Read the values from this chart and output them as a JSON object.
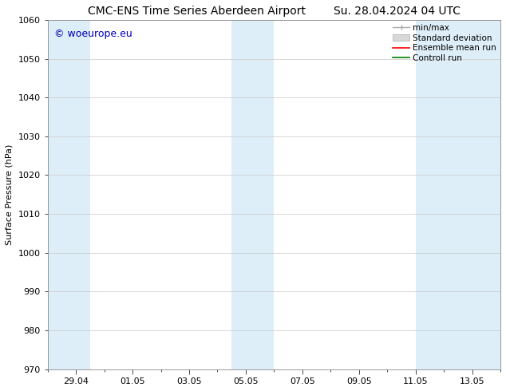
{
  "title_left": "CMC-ENS Time Series Aberdeen Airport",
  "title_right": "Su. 28.04.2024 04 UTC",
  "ylabel": "Surface Pressure (hPa)",
  "watermark": "© woeurope.eu",
  "ylim": [
    970,
    1060
  ],
  "yticks": [
    970,
    980,
    990,
    1000,
    1010,
    1020,
    1030,
    1040,
    1050,
    1060
  ],
  "xtick_labels": [
    "29.04",
    "01.05",
    "03.05",
    "05.05",
    "07.05",
    "09.05",
    "11.05",
    "13.05"
  ],
  "xtick_positions": [
    1,
    3,
    5,
    7,
    9,
    11,
    13,
    15
  ],
  "xmin": 0,
  "xmax": 16,
  "shaded_bands": [
    {
      "xmin": 0,
      "xmax": 1.5,
      "color": "#ddeef8"
    },
    {
      "xmin": 6.5,
      "xmax": 8.0,
      "color": "#ddeef8"
    },
    {
      "xmin": 13.0,
      "xmax": 16,
      "color": "#ddeef8"
    }
  ],
  "minor_xtick_positions": [
    0,
    1,
    2,
    3,
    4,
    5,
    6,
    7,
    8,
    9,
    10,
    11,
    12,
    13,
    14,
    15,
    16
  ],
  "background_color": "#ffffff",
  "grid_color": "#c8c8c8",
  "legend_items": [
    {
      "label": "min/max",
      "type": "errorbar",
      "color": "#aaaaaa"
    },
    {
      "label": "Standard deviation",
      "type": "band",
      "color": "#cccccc"
    },
    {
      "label": "Ensemble mean run",
      "type": "line",
      "color": "#ff0000"
    },
    {
      "label": "Controll run",
      "type": "line",
      "color": "#008000"
    }
  ],
  "title_fontsize": 10,
  "axis_fontsize": 8,
  "tick_label_fontsize": 8,
  "watermark_color": "#0000bb",
  "watermark_fontsize": 9,
  "legend_fontsize": 7.5
}
